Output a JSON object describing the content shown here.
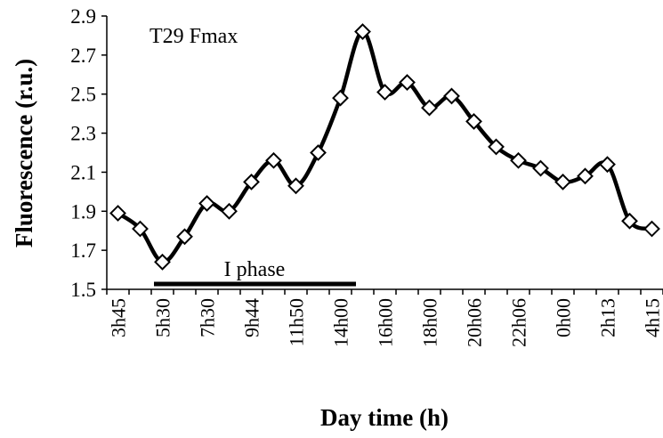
{
  "chart_data": {
    "type": "line",
    "annotations": [
      "T29 Fmax",
      "I phase"
    ],
    "x_label": "Day time (h)",
    "y_label": "Fluorescence (r.u.)",
    "categories": [
      "3h45",
      null,
      "5h30",
      null,
      "7h30",
      null,
      "9h44",
      null,
      "11h50",
      null,
      "14h00",
      null,
      "16h00",
      null,
      "18h00",
      null,
      "20h06",
      null,
      "22h06",
      null,
      "0h00",
      null,
      "2h13",
      null,
      "4h15"
    ],
    "series": [
      {
        "color": "#000000",
        "values": [
          1.89,
          1.81,
          1.64,
          1.77,
          1.94,
          1.9,
          2.05,
          2.16,
          2.03,
          2.2,
          2.48,
          2.82,
          2.51,
          2.56,
          2.43,
          2.49,
          2.36,
          2.23,
          2.16,
          2.12,
          2.05,
          2.08,
          2.14,
          1.85,
          1.81
        ]
      }
    ],
    "ylim": [
      1.5,
      2.9
    ],
    "yticks": [
      1.5,
      1.7,
      1.9,
      2.1,
      2.3,
      2.5,
      2.7,
      2.9
    ]
  }
}
